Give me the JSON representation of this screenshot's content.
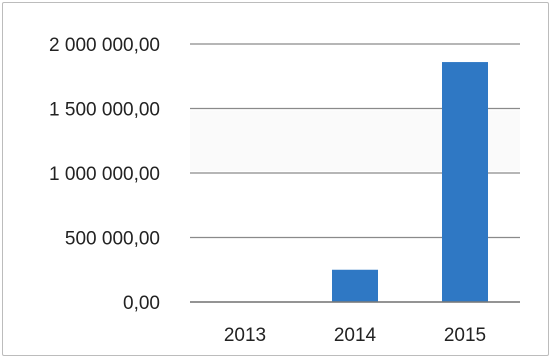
{
  "chart_data": {
    "type": "bar",
    "categories": [
      "2013",
      "2014",
      "2015"
    ],
    "values": [
      0,
      250000,
      1860000
    ],
    "ylim": [
      0,
      2000000
    ],
    "yticks": [
      0,
      500000,
      1000000,
      1500000,
      2000000
    ],
    "ytick_labels": [
      "0,00",
      "500 000,00",
      "1 000 000,00",
      "1 500 000,00",
      "2 000 000,00"
    ],
    "grid": true,
    "legend": "none",
    "colors": {
      "bar": "#2f78c4",
      "grid": "#8a8a8a"
    }
  }
}
